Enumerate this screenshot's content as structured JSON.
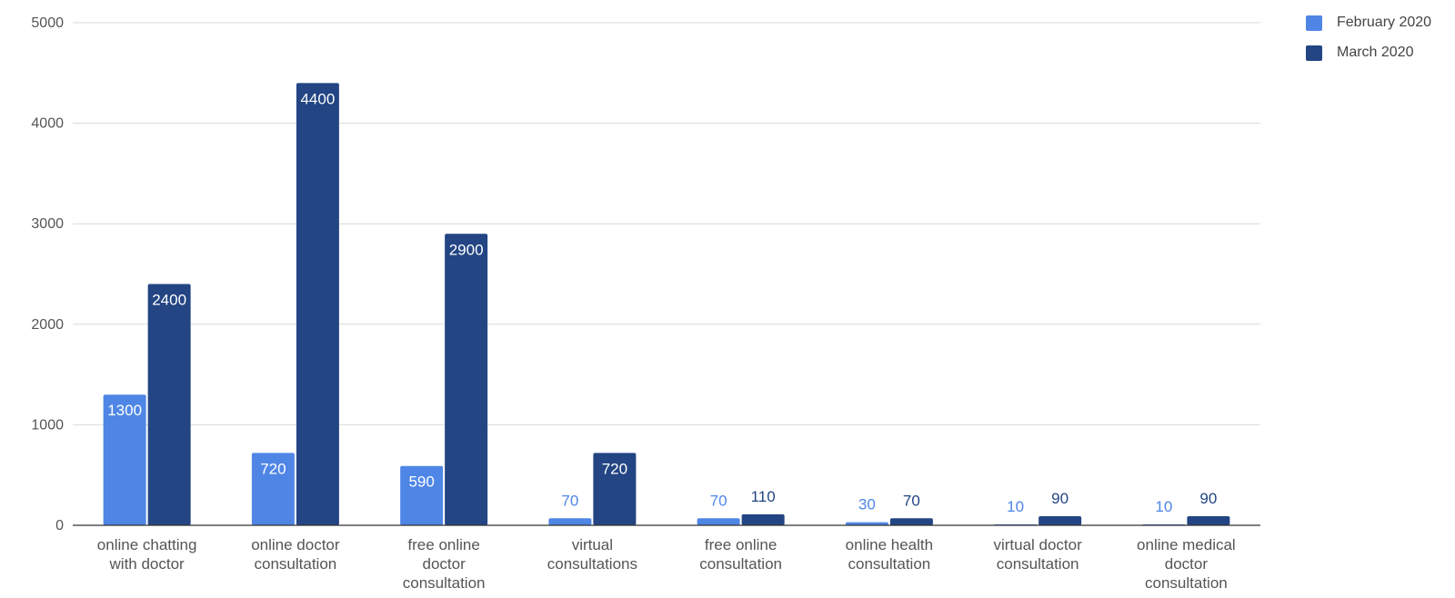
{
  "chart_data": {
    "type": "bar",
    "title": "",
    "xlabel": "",
    "ylabel": "",
    "ylim": [
      0,
      5000
    ],
    "yticks": [
      0,
      1000,
      2000,
      3000,
      4000,
      5000
    ],
    "grid": true,
    "legend_position": "top-right",
    "categories": [
      [
        "online chatting",
        "with doctor"
      ],
      [
        "online doctor",
        "consultation"
      ],
      [
        "free online",
        "doctor",
        "consultation"
      ],
      [
        "virtual",
        "consultations"
      ],
      [
        "free online",
        "consultation"
      ],
      [
        "online health",
        "consultation"
      ],
      [
        "virtual doctor",
        "consultation"
      ],
      [
        "online medical",
        "doctor",
        "consultation"
      ]
    ],
    "series": [
      {
        "name": "February 2020",
        "color": "#4f86e6",
        "values": [
          1300,
          720,
          590,
          70,
          70,
          30,
          10,
          10
        ],
        "labels": [
          "1300",
          "720",
          "590",
          "70",
          "70",
          "30",
          "10",
          "10"
        ]
      },
      {
        "name": "March 2020",
        "color": "#234583",
        "values": [
          2400,
          4400,
          2900,
          720,
          110,
          70,
          90,
          90
        ],
        "labels": [
          "2400",
          "4400",
          "2900",
          "720",
          "110",
          "70",
          "90",
          "90"
        ]
      }
    ]
  }
}
